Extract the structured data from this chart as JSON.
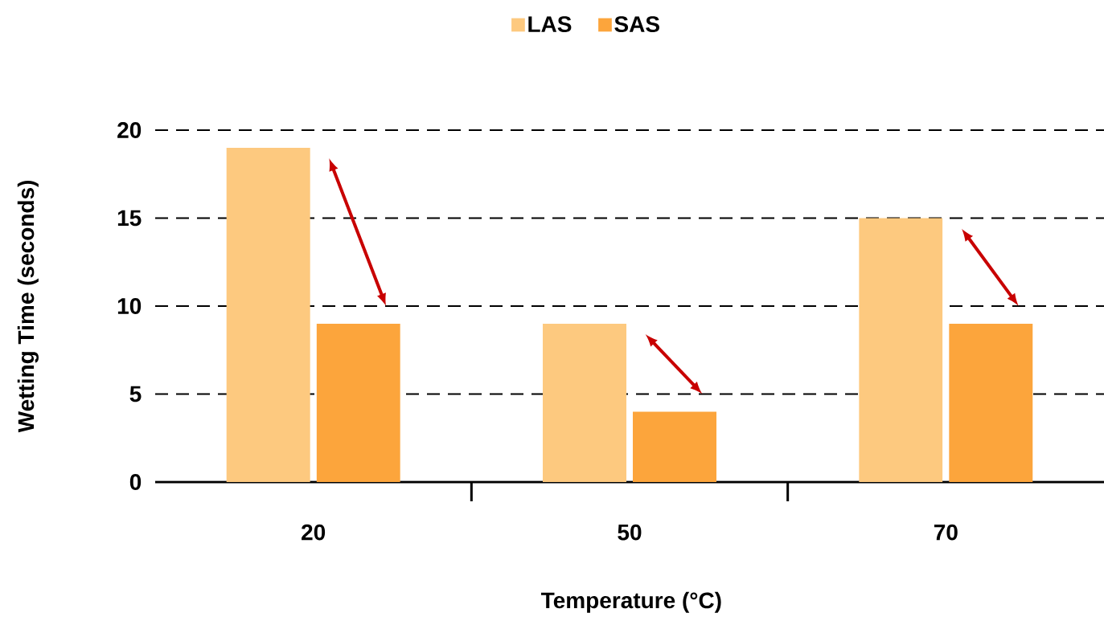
{
  "chart_data": {
    "type": "bar",
    "xlabel": "Temperature (°C)",
    "ylabel": "Wetting Time (seconds)",
    "categories": [
      "20",
      "50",
      "70"
    ],
    "series": [
      {
        "name": "LAS",
        "color": "#fdc97f",
        "values": [
          19,
          9,
          15
        ]
      },
      {
        "name": "SAS",
        "color": "#fca53c",
        "values": [
          9,
          4,
          9
        ]
      }
    ],
    "ylim": [
      0,
      20
    ],
    "yticks": [
      0,
      5,
      10,
      15,
      20
    ],
    "grid": "y",
    "legend": "top"
  }
}
